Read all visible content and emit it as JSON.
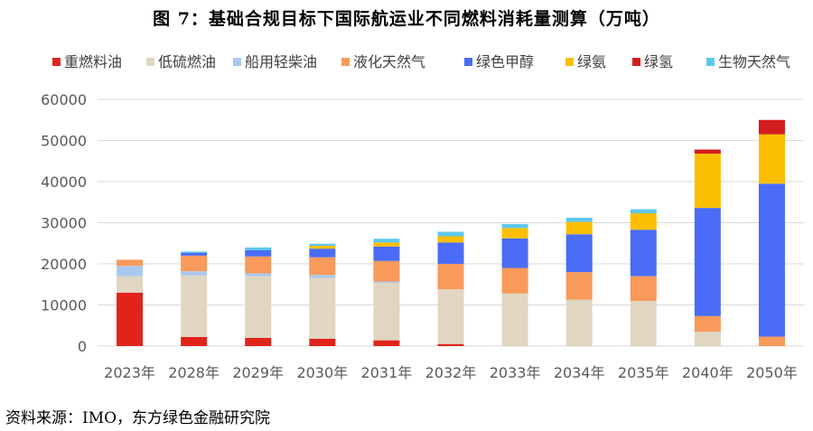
{
  "title": "图 7：基础合规目标下国际航运业不同燃料消耗量测算（万吨）",
  "source": "资料来源：IMO，东方绿色金融研究院",
  "chart_data": {
    "type": "bar",
    "stacked": true,
    "categories": [
      "2023年",
      "2028年",
      "2029年",
      "2030年",
      "2031年",
      "2032年",
      "2033年",
      "2034年",
      "2035年",
      "2040年",
      "2050年"
    ],
    "ylim": [
      0,
      60000
    ],
    "yticks": [
      "0",
      "10000",
      "20000",
      "30000",
      "40000",
      "50000",
      "60000"
    ],
    "legend_position": "top",
    "grid": true,
    "series": [
      {
        "name": "重燃料油",
        "color": "#e0241b",
        "values": [
          13000,
          2200,
          2000,
          1800,
          1400,
          500,
          0,
          0,
          0,
          0,
          0
        ]
      },
      {
        "name": "低硫燃油",
        "color": "#e0d6c2",
        "values": [
          4000,
          15000,
          15000,
          14800,
          14000,
          13300,
          12800,
          11300,
          11000,
          3500,
          0
        ]
      },
      {
        "name": "船用轻柴油",
        "color": "#a9c8f0",
        "values": [
          2500,
          1000,
          700,
          700,
          300,
          0,
          0,
          0,
          0,
          0,
          0
        ]
      },
      {
        "name": "液化天然气",
        "color": "#f79a5a",
        "values": [
          1500,
          3800,
          4100,
          4300,
          5000,
          6200,
          6200,
          6700,
          6000,
          3800,
          2300
        ]
      },
      {
        "name": "绿色甲醇",
        "color": "#4a6cf7",
        "values": [
          0,
          700,
          1500,
          2100,
          3500,
          5200,
          7200,
          9200,
          11300,
          26300,
          37200
        ]
      },
      {
        "name": "绿氨",
        "color": "#fcbf00",
        "values": [
          0,
          0,
          0,
          700,
          1000,
          1500,
          2500,
          3000,
          4000,
          13200,
          12000
        ]
      },
      {
        "name": "绿氢",
        "color": "#d31e1e",
        "values": [
          0,
          0,
          0,
          0,
          0,
          0,
          0,
          0,
          0,
          1000,
          3500
        ]
      },
      {
        "name": "生物天然气",
        "color": "#5ec8ef",
        "values": [
          0,
          300,
          700,
          500,
          900,
          1100,
          1000,
          1000,
          1000,
          0,
          0
        ]
      }
    ]
  }
}
